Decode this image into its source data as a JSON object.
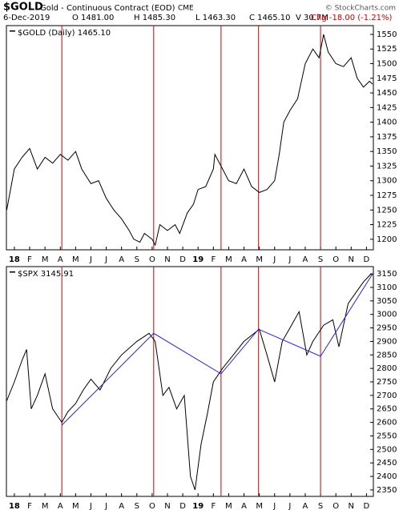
{
  "header": {
    "symbol": "$GOLD",
    "name": "Gold - Continuous Contract (EOD)",
    "exchange": "CME",
    "date": "6-Dec-2019",
    "open": "O 1481.00",
    "high": "H 1485.30",
    "low": "L 1463.30",
    "close": "C 1465.10",
    "volume": "V 30.7M",
    "change": "Chg -18.00 (-1.21%)",
    "watermark": "© StockCharts.com"
  },
  "chart_data": [
    {
      "type": "line",
      "xlim": [
        -0.52,
        23.45
      ],
      "ylim": [
        1182,
        1565
      ],
      "xticks": [
        {
          "value": 0,
          "label": "18"
        },
        {
          "value": 1,
          "label": "F"
        },
        {
          "value": 2,
          "label": "M"
        },
        {
          "value": 3,
          "label": "A"
        },
        {
          "value": 4,
          "label": "M"
        },
        {
          "value": 5,
          "label": "J"
        },
        {
          "value": 6,
          "label": "J"
        },
        {
          "value": 7,
          "label": "A"
        },
        {
          "value": 8,
          "label": "S"
        },
        {
          "value": 9,
          "label": "O"
        },
        {
          "value": 10,
          "label": "N"
        },
        {
          "value": 11,
          "label": "D"
        },
        {
          "value": 12,
          "label": "19"
        },
        {
          "value": 13,
          "label": "F"
        },
        {
          "value": 14,
          "label": "M"
        },
        {
          "value": 15,
          "label": "A"
        },
        {
          "value": 16,
          "label": "M"
        },
        {
          "value": 17,
          "label": "J"
        },
        {
          "value": 18,
          "label": "J"
        },
        {
          "value": 19,
          "label": "A"
        },
        {
          "value": 20,
          "label": "S"
        },
        {
          "value": 21,
          "label": "O"
        },
        {
          "value": 22,
          "label": "N"
        },
        {
          "value": 23,
          "label": "D"
        }
      ],
      "yticks": [
        1200,
        1225,
        1250,
        1275,
        1300,
        1325,
        1350,
        1375,
        1400,
        1425,
        1450,
        1475,
        1500,
        1525,
        1550
      ],
      "vertical_lines": {
        "color": "#cc0000",
        "x": [
          3.1,
          9.1,
          13.5,
          15.95,
          20
        ]
      },
      "series": [
        {
          "name": "$GOLD (Daily) 1465.10",
          "color": "#000000",
          "x": [
            -0.5,
            0,
            0.5,
            1,
            1.5,
            2,
            2.5,
            3,
            3.5,
            4,
            4.4,
            5,
            5.5,
            6,
            6.5,
            7,
            7.5,
            7.8,
            8.2,
            8.5,
            9,
            9.2,
            9.5,
            10,
            10.5,
            10.8,
            11.3,
            11.7,
            12,
            12.5,
            13,
            13.1,
            13.5,
            14,
            14.5,
            15,
            15.5,
            16,
            16.5,
            17,
            17.3,
            17.6,
            18,
            18.5,
            19,
            19.5,
            19.9,
            20.2,
            20.5,
            21,
            21.5,
            22,
            22.4,
            22.8,
            23.2,
            23.4
          ],
          "values": [
            1250,
            1320,
            1340,
            1355,
            1320,
            1340,
            1330,
            1345,
            1335,
            1350,
            1320,
            1295,
            1300,
            1270,
            1250,
            1235,
            1215,
            1200,
            1195,
            1210,
            1200,
            1190,
            1225,
            1215,
            1225,
            1210,
            1245,
            1260,
            1285,
            1290,
            1320,
            1345,
            1325,
            1300,
            1295,
            1320,
            1290,
            1280,
            1285,
            1300,
            1345,
            1400,
            1420,
            1440,
            1500,
            1525,
            1510,
            1550,
            1520,
            1500,
            1495,
            1510,
            1475,
            1460,
            1470,
            1465
          ]
        }
      ]
    },
    {
      "type": "line",
      "xlim": [
        -0.52,
        23.45
      ],
      "ylim": [
        2326,
        3177
      ],
      "xticks": [
        {
          "value": 0,
          "label": "18"
        },
        {
          "value": 1,
          "label": "F"
        },
        {
          "value": 2,
          "label": "M"
        },
        {
          "value": 3,
          "label": "A"
        },
        {
          "value": 4,
          "label": "M"
        },
        {
          "value": 5,
          "label": "J"
        },
        {
          "value": 6,
          "label": "J"
        },
        {
          "value": 7,
          "label": "A"
        },
        {
          "value": 8,
          "label": "S"
        },
        {
          "value": 9,
          "label": "O"
        },
        {
          "value": 10,
          "label": "N"
        },
        {
          "value": 11,
          "label": "D"
        },
        {
          "value": 12,
          "label": "19"
        },
        {
          "value": 13,
          "label": "F"
        },
        {
          "value": 14,
          "label": "M"
        },
        {
          "value": 15,
          "label": "A"
        },
        {
          "value": 16,
          "label": "M"
        },
        {
          "value": 17,
          "label": "J"
        },
        {
          "value": 18,
          "label": "J"
        },
        {
          "value": 19,
          "label": "A"
        },
        {
          "value": 20,
          "label": "S"
        },
        {
          "value": 21,
          "label": "O"
        },
        {
          "value": 22,
          "label": "N"
        },
        {
          "value": 23,
          "label": "D"
        }
      ],
      "yticks": [
        2350,
        2400,
        2450,
        2500,
        2550,
        2600,
        2650,
        2700,
        2750,
        2800,
        2850,
        2900,
        2950,
        3000,
        3050,
        3100,
        3150
      ],
      "vertical_lines": {
        "color": "#cc0000",
        "x": [
          3.1,
          9.1,
          13.5,
          15.95,
          20
        ]
      },
      "series": [
        {
          "name": "$SPX 3145.91",
          "color": "#000000",
          "x": [
            -0.5,
            0,
            0.5,
            0.8,
            1.1,
            1.5,
            2,
            2.5,
            3.1,
            3.5,
            4,
            4.5,
            5,
            5.6,
            6.3,
            7,
            8,
            8.8,
            9.2,
            9.7,
            10.1,
            10.6,
            11.1,
            11.5,
            11.8,
            12.2,
            12.6,
            13,
            13.6,
            14.3,
            15,
            16,
            16.5,
            17,
            17.5,
            18,
            18.6,
            19.1,
            19.5,
            20.2,
            20.8,
            21.2,
            21.8,
            22.3,
            22.8,
            23.3,
            23.4
          ],
          "values": [
            2680,
            2750,
            2830,
            2870,
            2650,
            2700,
            2780,
            2650,
            2600,
            2640,
            2670,
            2720,
            2760,
            2720,
            2800,
            2850,
            2900,
            2930,
            2900,
            2700,
            2730,
            2650,
            2700,
            2400,
            2350,
            2520,
            2630,
            2750,
            2800,
            2850,
            2900,
            2945,
            2850,
            2750,
            2900,
            2950,
            3010,
            2850,
            2900,
            2960,
            2980,
            2880,
            3040,
            3080,
            3120,
            3150,
            3145.91
          ]
        },
        {
          "color": "#2222dd",
          "x": [
            3.1,
            9.1,
            13.5,
            15.95,
            20,
            23.4
          ],
          "values": [
            2590,
            2930,
            2780,
            2945,
            2845,
            3150
          ]
        }
      ]
    }
  ]
}
